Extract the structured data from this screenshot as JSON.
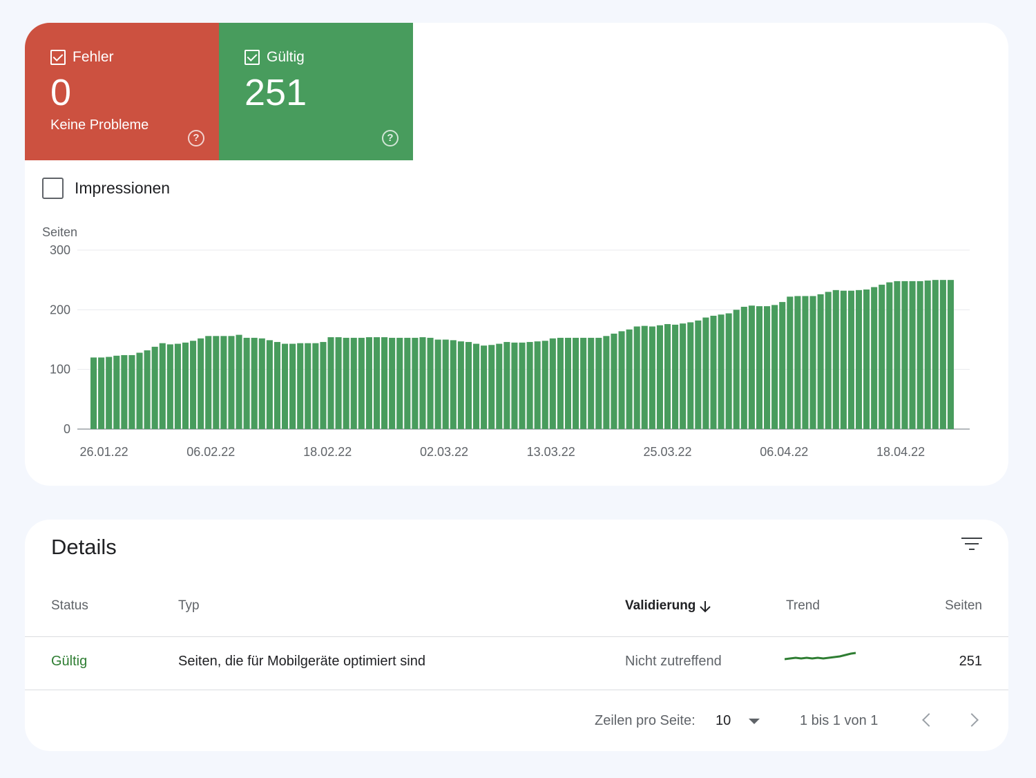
{
  "tiles": {
    "error": {
      "label": "Fehler",
      "value": "0",
      "sub": "Keine Probleme",
      "color": "#cc5140"
    },
    "valid": {
      "label": "Gültig",
      "value": "251",
      "color": "#489c5d"
    }
  },
  "impressions_label": "Impressionen",
  "chart_data": {
    "type": "bar",
    "ylabel": "Seiten",
    "ylim": [
      0,
      300
    ],
    "yticks": [
      0,
      100,
      200,
      300
    ],
    "xticks": [
      "26.01.22",
      "06.02.22",
      "18.02.22",
      "02.03.22",
      "13.03.22",
      "25.03.22",
      "06.04.22",
      "18.04.22"
    ],
    "grid": true,
    "bar_color": "#489c5d",
    "x_start": "25.01.22",
    "x_end": "24.04.22",
    "values": [
      120,
      120,
      121,
      123,
      124,
      124,
      128,
      132,
      138,
      144,
      142,
      143,
      145,
      148,
      152,
      156,
      156,
      156,
      156,
      158,
      153,
      153,
      152,
      149,
      146,
      143,
      143,
      144,
      144,
      144,
      146,
      154,
      154,
      153,
      153,
      153,
      154,
      154,
      154,
      153,
      153,
      153,
      153,
      154,
      153,
      150,
      150,
      149,
      147,
      146,
      143,
      140,
      141,
      143,
      146,
      145,
      145,
      146,
      147,
      148,
      152,
      153,
      153,
      153,
      153,
      153,
      153,
      156,
      160,
      164,
      167,
      172,
      173,
      172,
      174,
      176,
      175,
      177,
      179,
      182,
      187,
      190,
      192,
      194,
      200,
      205,
      207,
      206,
      206,
      208,
      213,
      222,
      223,
      223,
      223,
      226,
      230,
      233,
      232,
      232,
      233,
      234,
      238,
      242,
      246,
      248,
      248,
      248,
      248,
      249,
      250,
      250,
      250
    ]
  },
  "details": {
    "title": "Details",
    "filter_icon": "filter-icon",
    "columns": {
      "status": "Status",
      "type": "Typ",
      "validation": "Validierung",
      "trend": "Trend",
      "pages": "Seiten"
    },
    "rows": [
      {
        "status": "Gültig",
        "type": "Seiten, die für Mobilgeräte optimiert sind",
        "validation": "Nicht zutreffend",
        "pages": "251"
      }
    ],
    "pagination": {
      "rows_per_page_label": "Zeilen pro Seite:",
      "rows_per_page": "10",
      "range": "1 bis 1 von 1"
    }
  }
}
